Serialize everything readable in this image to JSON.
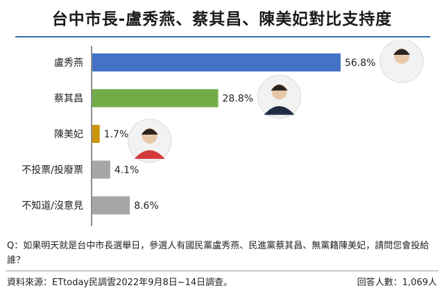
{
  "title": "台中市長-盧秀燕、蔡其昌、陳美妃對比支持度",
  "question": "Q：如果明天就是台中市長選舉日，參選人有國民黨盧秀燕、民進黨蔡其昌、無黨籍陳美妃，請問您會投給誰？",
  "source": "資料來源：ETtoday民調雲2022年9月8日~14日調查。",
  "respondents": "回答人數：1,069人",
  "chart_data": {
    "type": "bar",
    "orientation": "horizontal",
    "title": "台中市長-盧秀燕、蔡其昌、陳美妃對比支持度",
    "xlabel": "",
    "ylabel": "",
    "xlim": [
      0,
      60
    ],
    "grid": false,
    "categories": [
      "盧秀燕",
      "蔡其昌",
      "陳美妃",
      "不投票/投廢票",
      "不知道/沒意見"
    ],
    "values": [
      56.8,
      28.8,
      1.7,
      4.1,
      8.6
    ],
    "value_labels": [
      "56.8%",
      "28.8%",
      "1.7%",
      "4.1%",
      "8.6%"
    ],
    "colors": [
      "#4472c4",
      "#70ad47",
      "#c9960c",
      "#a6a6a6",
      "#a6a6a6"
    ],
    "portraits": [
      {
        "category": "盧秀燕",
        "icon": "portrait-lu-icon"
      },
      {
        "category": "蔡其昌",
        "icon": "portrait-tsai-icon"
      },
      {
        "category": "陳美妃",
        "icon": "portrait-chen-icon"
      }
    ]
  }
}
